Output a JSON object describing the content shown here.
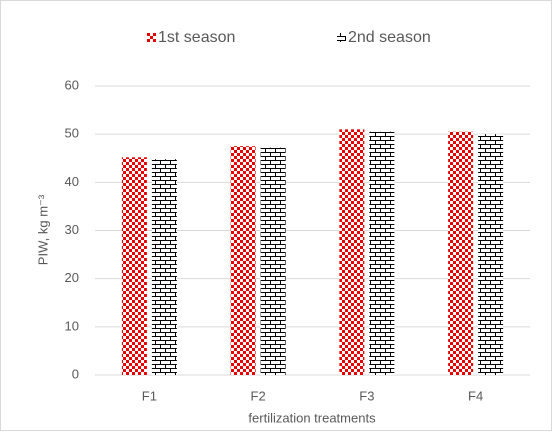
{
  "chart_data": {
    "type": "bar",
    "x_label": "fertilization treatments",
    "y_label": "PIW, kg m⁻³",
    "categories": [
      "F1",
      "F2",
      "F3",
      "F4"
    ],
    "series": [
      {
        "name": "1st season",
        "color": "#e60000",
        "pattern": "checker",
        "values": [
          45.2,
          47.5,
          51,
          50.5
        ]
      },
      {
        "name": "2nd season",
        "color": "#000000",
        "pattern": "brick",
        "values": [
          44.8,
          47.2,
          50.5,
          50
        ]
      }
    ],
    "ylim": [
      0,
      60
    ],
    "yticks": [
      0,
      10,
      20,
      30,
      40,
      50,
      60
    ],
    "grid": true,
    "legend": "top"
  }
}
